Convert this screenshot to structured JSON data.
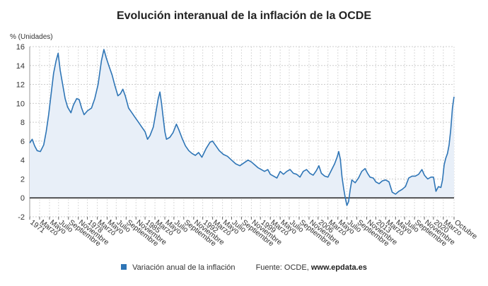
{
  "chart_data": {
    "type": "area",
    "title": "Evolución interanual de la inflación de la OCDE",
    "ylabel": "% (Unidades)",
    "xlabel": "",
    "ylim": [
      -2,
      16
    ],
    "yticks": [
      -2,
      0,
      2,
      4,
      6,
      8,
      10,
      12,
      14,
      16
    ],
    "grid": true,
    "x_start": 1971.0,
    "x_end": 2022.5,
    "x_ticks": [
      {
        "label": "1971",
        "t": 1971.0
      },
      {
        "label": "Marzo",
        "t": 1972.2
      },
      {
        "label": "Mayo",
        "t": 1973.4
      },
      {
        "label": "Julio",
        "t": 1974.5
      },
      {
        "label": "Septiembre",
        "t": 1975.7
      },
      {
        "label": "Noviembre",
        "t": 1976.9
      },
      {
        "label": "1978",
        "t": 1978.0
      },
      {
        "label": "Marzo",
        "t": 1979.2
      },
      {
        "label": "Mayo",
        "t": 1980.4
      },
      {
        "label": "Julio",
        "t": 1981.5
      },
      {
        "label": "Septiembre",
        "t": 1982.7
      },
      {
        "label": "Noviembre",
        "t": 1983.9
      },
      {
        "label": "1985",
        "t": 1985.0
      },
      {
        "label": "Marzo",
        "t": 1986.2
      },
      {
        "label": "Mayo",
        "t": 1987.4
      },
      {
        "label": "Julio",
        "t": 1988.5
      },
      {
        "label": "Septiembre",
        "t": 1989.7
      },
      {
        "label": "Noviembre",
        "t": 1990.9
      },
      {
        "label": "1992",
        "t": 1992.0
      },
      {
        "label": "Marzo",
        "t": 1993.2
      },
      {
        "label": "Mayo",
        "t": 1994.4
      },
      {
        "label": "Julio",
        "t": 1995.5
      },
      {
        "label": "Septiembre",
        "t": 1996.7
      },
      {
        "label": "Noviembre",
        "t": 1997.9
      },
      {
        "label": "1999",
        "t": 1999.0
      },
      {
        "label": "Marzo",
        "t": 2000.2
      },
      {
        "label": "Mayo",
        "t": 2001.4
      },
      {
        "label": "Julio",
        "t": 2002.5
      },
      {
        "label": "Septiembre",
        "t": 2003.7
      },
      {
        "label": "Noviembre",
        "t": 2004.9
      },
      {
        "label": "2006",
        "t": 2006.0
      },
      {
        "label": "Marzo",
        "t": 2007.2
      },
      {
        "label": "Mayo",
        "t": 2008.4
      },
      {
        "label": "Julio",
        "t": 2009.5
      },
      {
        "label": "Septiembre",
        "t": 2010.7
      },
      {
        "label": "Noviembre",
        "t": 2011.9
      },
      {
        "label": "2013",
        "t": 2013.0
      },
      {
        "label": "Marzo",
        "t": 2014.2
      },
      {
        "label": "Mayo",
        "t": 2015.4
      },
      {
        "label": "Julio",
        "t": 2016.5
      },
      {
        "label": "Septiembre",
        "t": 2017.7
      },
      {
        "label": "Noviembre",
        "t": 2018.9
      },
      {
        "label": "2020",
        "t": 2020.0
      },
      {
        "label": "Marzo",
        "t": 2021.2
      },
      {
        "label": "Octubre",
        "t": 2022.5
      }
    ],
    "series": [
      {
        "name": "Variación anual de la inflación",
        "color": "#2e75b6",
        "fill": "#e8eff8",
        "points": [
          [
            1971.0,
            5.8
          ],
          [
            1971.3,
            6.2
          ],
          [
            1971.6,
            5.5
          ],
          [
            1971.9,
            5.0
          ],
          [
            1972.3,
            4.9
          ],
          [
            1972.7,
            5.6
          ],
          [
            1973.0,
            7.0
          ],
          [
            1973.3,
            8.8
          ],
          [
            1973.6,
            11.0
          ],
          [
            1973.9,
            13.2
          ],
          [
            1974.2,
            14.5
          ],
          [
            1974.45,
            15.3
          ],
          [
            1974.7,
            13.5
          ],
          [
            1975.0,
            12.0
          ],
          [
            1975.3,
            10.5
          ],
          [
            1975.6,
            9.6
          ],
          [
            1976.0,
            9.0
          ],
          [
            1976.3,
            9.8
          ],
          [
            1976.7,
            10.5
          ],
          [
            1977.0,
            10.4
          ],
          [
            1977.3,
            9.5
          ],
          [
            1977.6,
            8.8
          ],
          [
            1978.0,
            9.2
          ],
          [
            1978.5,
            9.5
          ],
          [
            1978.9,
            10.5
          ],
          [
            1979.3,
            12.0
          ],
          [
            1979.7,
            14.5
          ],
          [
            1980.0,
            15.7
          ],
          [
            1980.3,
            14.8
          ],
          [
            1980.6,
            14.0
          ],
          [
            1981.0,
            13.0
          ],
          [
            1981.3,
            12.0
          ],
          [
            1981.7,
            10.8
          ],
          [
            1982.0,
            11.0
          ],
          [
            1982.3,
            11.5
          ],
          [
            1982.6,
            10.8
          ],
          [
            1983.0,
            9.5
          ],
          [
            1983.4,
            9.0
          ],
          [
            1983.8,
            8.5
          ],
          [
            1984.2,
            8.0
          ],
          [
            1984.6,
            7.5
          ],
          [
            1985.0,
            7.0
          ],
          [
            1985.3,
            6.2
          ],
          [
            1985.6,
            6.6
          ],
          [
            1986.0,
            7.5
          ],
          [
            1986.3,
            9.0
          ],
          [
            1986.6,
            10.5
          ],
          [
            1986.8,
            11.2
          ],
          [
            1987.0,
            10.0
          ],
          [
            1987.2,
            8.5
          ],
          [
            1987.4,
            7.0
          ],
          [
            1987.6,
            6.2
          ],
          [
            1988.0,
            6.4
          ],
          [
            1988.4,
            6.9
          ],
          [
            1988.8,
            7.8
          ],
          [
            1989.1,
            7.2
          ],
          [
            1989.5,
            6.3
          ],
          [
            1989.9,
            5.5
          ],
          [
            1990.3,
            5.0
          ],
          [
            1990.7,
            4.7
          ],
          [
            1991.1,
            4.5
          ],
          [
            1991.5,
            4.8
          ],
          [
            1991.9,
            4.3
          ],
          [
            1992.4,
            5.2
          ],
          [
            1992.9,
            5.9
          ],
          [
            1993.2,
            6.0
          ],
          [
            1993.6,
            5.5
          ],
          [
            1994.0,
            5.0
          ],
          [
            1994.5,
            4.6
          ],
          [
            1995.0,
            4.4
          ],
          [
            1995.5,
            4.0
          ],
          [
            1996.0,
            3.6
          ],
          [
            1996.5,
            3.4
          ],
          [
            1997.0,
            3.7
          ],
          [
            1997.5,
            4.0
          ],
          [
            1997.9,
            3.8
          ],
          [
            1998.3,
            3.5
          ],
          [
            1998.7,
            3.2
          ],
          [
            1999.1,
            3.0
          ],
          [
            1999.5,
            2.8
          ],
          [
            1999.9,
            3.0
          ],
          [
            2000.2,
            2.5
          ],
          [
            2000.6,
            2.3
          ],
          [
            2001.0,
            2.1
          ],
          [
            2001.4,
            2.8
          ],
          [
            2001.8,
            2.5
          ],
          [
            2002.2,
            2.8
          ],
          [
            2002.6,
            3.0
          ],
          [
            2003.0,
            2.6
          ],
          [
            2003.4,
            2.5
          ],
          [
            2003.8,
            2.2
          ],
          [
            2004.2,
            2.8
          ],
          [
            2004.6,
            3.0
          ],
          [
            2005.0,
            2.6
          ],
          [
            2005.4,
            2.4
          ],
          [
            2005.8,
            2.9
          ],
          [
            2006.1,
            3.4
          ],
          [
            2006.4,
            2.6
          ],
          [
            2006.8,
            2.3
          ],
          [
            2007.2,
            2.2
          ],
          [
            2007.6,
            2.9
          ],
          [
            2008.0,
            3.6
          ],
          [
            2008.3,
            4.3
          ],
          [
            2008.5,
            4.9
          ],
          [
            2008.7,
            4.1
          ],
          [
            2008.9,
            2.2
          ],
          [
            2009.1,
            1.0
          ],
          [
            2009.3,
            0.0
          ],
          [
            2009.5,
            -0.8
          ],
          [
            2009.7,
            -0.4
          ],
          [
            2009.9,
            0.9
          ],
          [
            2010.1,
            1.9
          ],
          [
            2010.5,
            1.6
          ],
          [
            2010.9,
            2.1
          ],
          [
            2011.3,
            2.8
          ],
          [
            2011.7,
            3.1
          ],
          [
            2012.0,
            2.6
          ],
          [
            2012.3,
            2.2
          ],
          [
            2012.7,
            2.1
          ],
          [
            2013.0,
            1.7
          ],
          [
            2013.4,
            1.5
          ],
          [
            2013.8,
            1.8
          ],
          [
            2014.2,
            1.9
          ],
          [
            2014.6,
            1.7
          ],
          [
            2015.0,
            0.6
          ],
          [
            2015.4,
            0.4
          ],
          [
            2015.8,
            0.7
          ],
          [
            2016.2,
            0.9
          ],
          [
            2016.6,
            1.2
          ],
          [
            2017.0,
            2.1
          ],
          [
            2017.4,
            2.3
          ],
          [
            2017.8,
            2.3
          ],
          [
            2018.2,
            2.5
          ],
          [
            2018.6,
            3.0
          ],
          [
            2018.9,
            2.4
          ],
          [
            2019.3,
            2.0
          ],
          [
            2019.7,
            2.2
          ],
          [
            2020.0,
            2.2
          ],
          [
            2020.3,
            0.7
          ],
          [
            2020.6,
            1.2
          ],
          [
            2020.9,
            1.1
          ],
          [
            2021.1,
            1.9
          ],
          [
            2021.3,
            3.5
          ],
          [
            2021.5,
            4.2
          ],
          [
            2021.7,
            4.7
          ],
          [
            2021.9,
            5.6
          ],
          [
            2022.1,
            7.2
          ],
          [
            2022.3,
            9.5
          ],
          [
            2022.45,
            10.4
          ],
          [
            2022.5,
            10.7
          ]
        ]
      }
    ]
  },
  "legend": {
    "label": "Variación anual de la inflación",
    "source_prefix": "Fuente: OCDE, ",
    "source_site": "www.epdata.es"
  }
}
